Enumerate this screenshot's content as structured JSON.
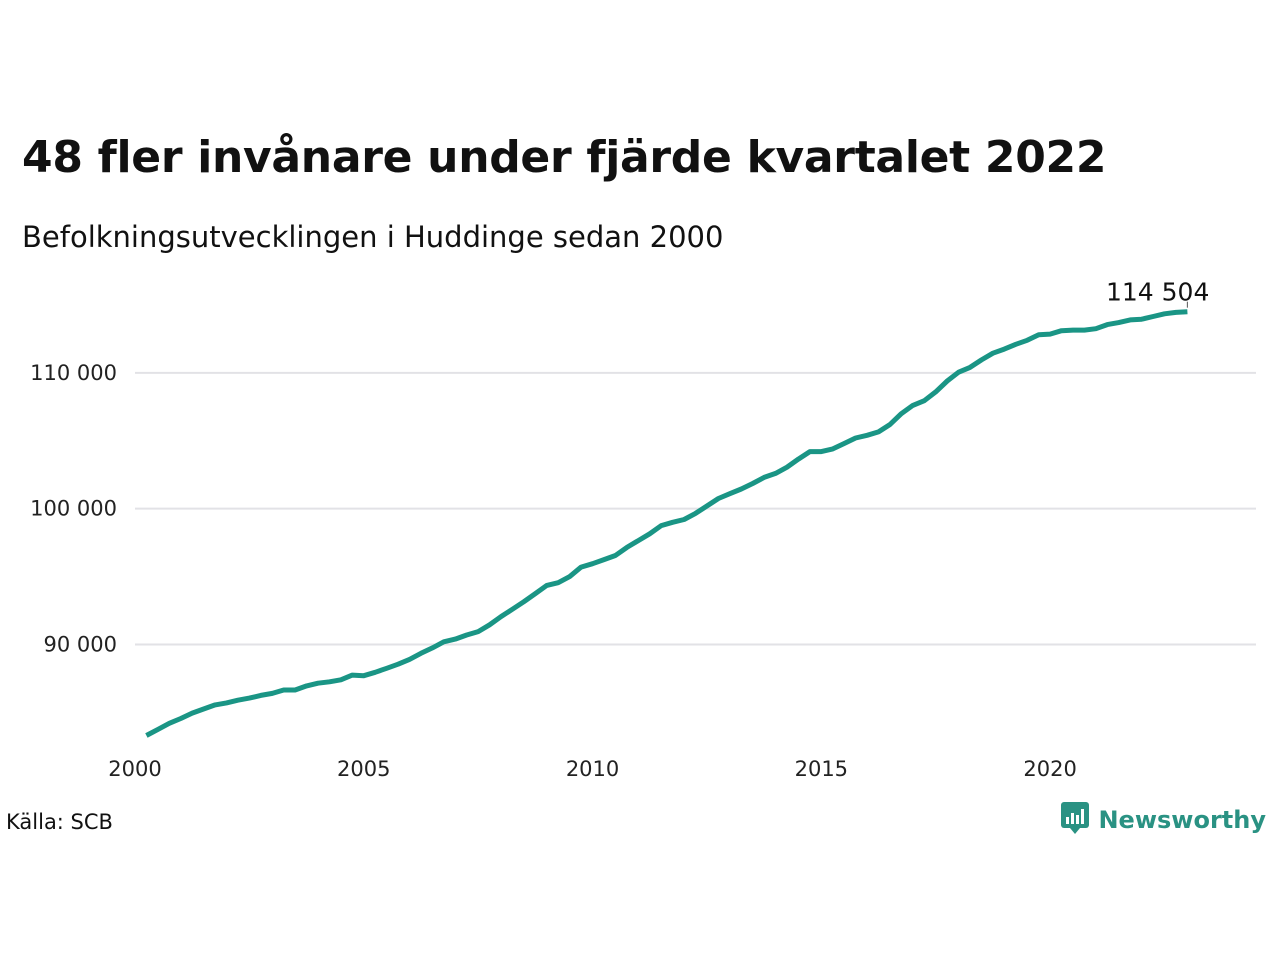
{
  "header": {
    "title": "48 fler invånare under fjärde kvartalet 2022",
    "subtitle": "Befolkningsutvecklingen i Huddinge sedan 2000"
  },
  "footer": {
    "source": "Källa: SCB",
    "brand": "Newsworthy",
    "brand_icon": "bar-chart-speech-bubble-icon",
    "brand_color": "#2a9283"
  },
  "chart_data": {
    "type": "line",
    "title": "48 fler invånare under fjärde kvartalet 2022",
    "subtitle": "Befolkningsutvecklingen i Huddinge sedan 2000",
    "xlabel": "",
    "ylabel": "",
    "line_color": "#1a9585",
    "grid": true,
    "x_ticks": [
      2000,
      2005,
      2010,
      2015,
      2020
    ],
    "x_tick_labels": [
      "2000",
      "2005",
      "2010",
      "2015",
      "2020"
    ],
    "y_ticks": [
      90000,
      100000,
      110000
    ],
    "y_tick_labels": [
      "90 000",
      "100 000",
      "110 000"
    ],
    "xlim": [
      2000,
      2024.5
    ],
    "ylim": [
      82600,
      116100
    ],
    "annotation": {
      "label": "114 504",
      "x": 2023.0,
      "y": 114504
    },
    "series": [
      {
        "x": [
          2000.25,
          2000.5,
          2000.75,
          2001.0,
          2001.25,
          2001.5,
          2001.75,
          2002.0,
          2002.25,
          2002.5,
          2002.75,
          2003.0,
          2003.25,
          2003.5,
          2003.75,
          2004.0,
          2004.25,
          2004.5,
          2004.75,
          2005.0,
          2005.25,
          2005.5,
          2005.75,
          2006.0,
          2006.25,
          2006.5,
          2006.75,
          2007.0,
          2007.25,
          2007.5,
          2007.75,
          2008.0,
          2008.25,
          2008.5,
          2008.75,
          2009.0,
          2009.25,
          2009.5,
          2009.75,
          2010.0,
          2010.25,
          2010.5,
          2010.75,
          2011.0,
          2011.25,
          2011.5,
          2011.75,
          2012.0,
          2012.25,
          2012.5,
          2012.75,
          2013.0,
          2013.25,
          2013.5,
          2013.75,
          2014.0,
          2014.25,
          2014.5,
          2014.75,
          2015.0,
          2015.25,
          2015.5,
          2015.75,
          2016.0,
          2016.25,
          2016.5,
          2016.75,
          2017.0,
          2017.25,
          2017.5,
          2017.75,
          2018.0,
          2018.25,
          2018.5,
          2018.75,
          2019.0,
          2019.25,
          2019.5,
          2019.75,
          2020.0,
          2020.25,
          2020.5,
          2020.75,
          2021.0,
          2021.25,
          2021.5,
          2021.75,
          2022.0,
          2022.25,
          2022.5,
          2022.75,
          2023.0
        ],
        "values": [
          83300,
          83750,
          84200,
          84550,
          84950,
          85250,
          85550,
          85700,
          85900,
          86050,
          86250,
          86400,
          86650,
          86650,
          86950,
          87150,
          87250,
          87400,
          87750,
          87700,
          87950,
          88250,
          88550,
          88900,
          89350,
          89750,
          90200,
          90400,
          90700,
          90950,
          91450,
          92050,
          92600,
          93150,
          93750,
          94350,
          94550,
          95000,
          95700,
          95950,
          96250,
          96550,
          97150,
          97650,
          98150,
          98750,
          99000,
          99200,
          99650,
          100200,
          100750,
          101100,
          101450,
          101850,
          102300,
          102600,
          103050,
          103650,
          104200,
          104200,
          104400,
          104800,
          105200,
          105400,
          105650,
          106200,
          107000,
          107600,
          107950,
          108600,
          109400,
          110050,
          110400,
          110950,
          111450,
          111750,
          112100,
          112400,
          112800,
          112850,
          113100,
          113150,
          113150,
          113250,
          113550,
          113700,
          113900,
          113950,
          114150,
          114350,
          114450,
          114504
        ]
      }
    ]
  }
}
